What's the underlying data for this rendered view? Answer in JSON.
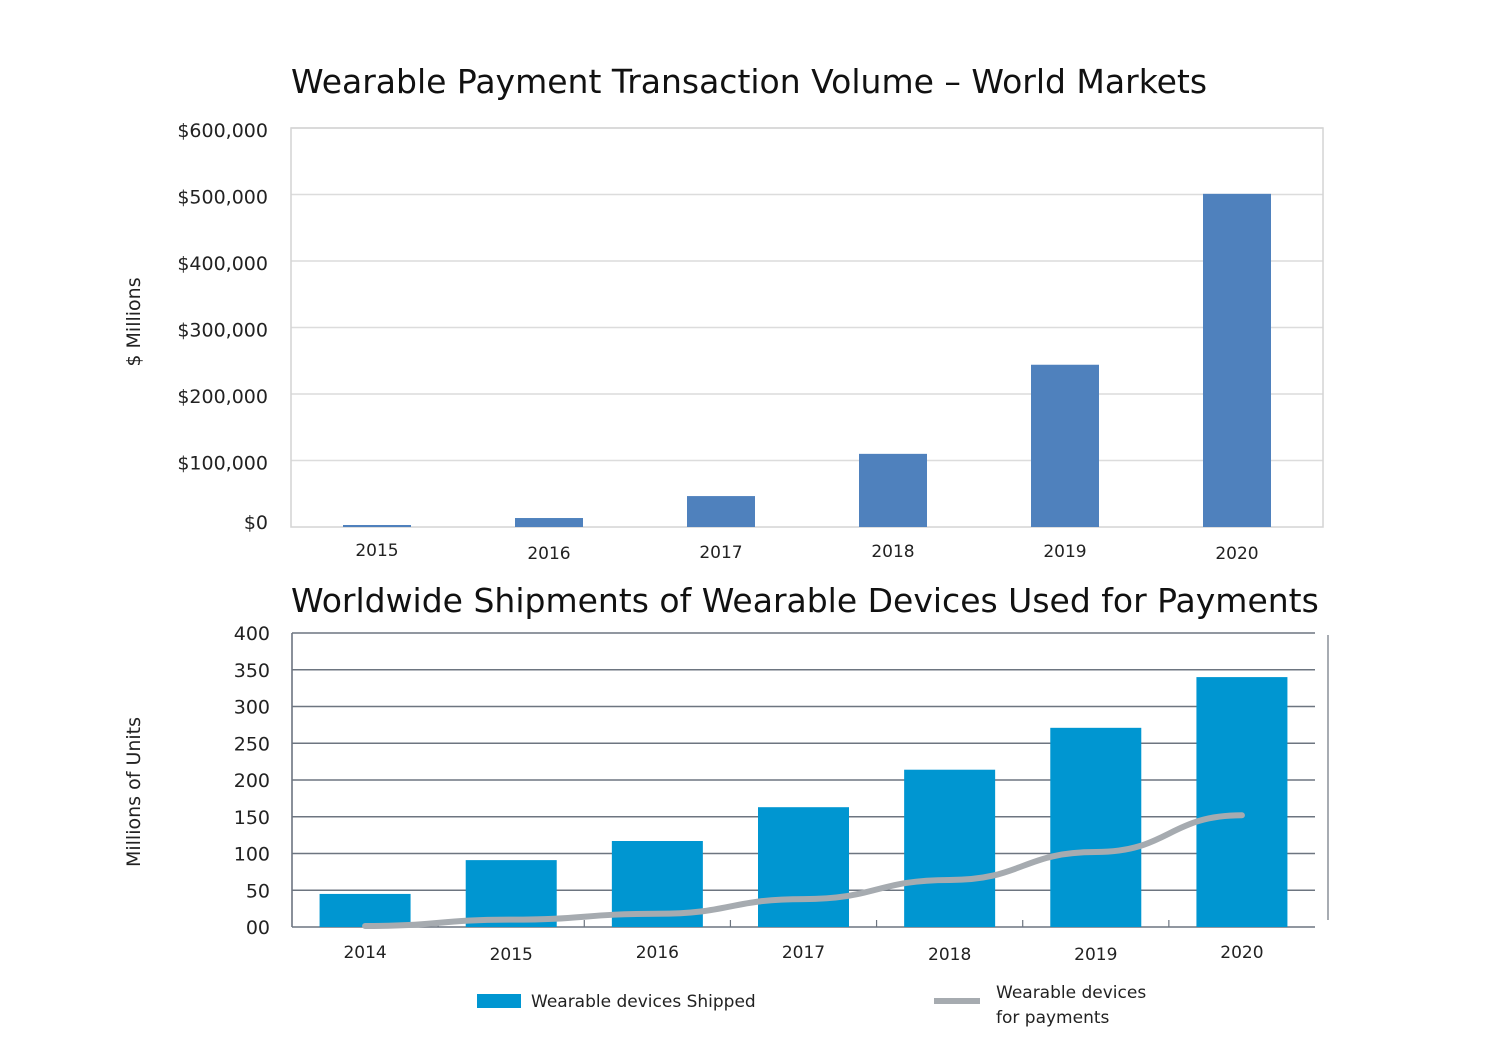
{
  "chart_data": [
    {
      "type": "bar",
      "title": "Wearable Payment Transaction Volume – World Markets",
      "xlabel": "",
      "ylabel": "$ Millions",
      "categories": [
        "2015",
        "2016",
        "2017",
        "2018",
        "2019",
        "2020"
      ],
      "values": [
        3000,
        13500,
        46500,
        110000,
        244000,
        501000
      ],
      "ylim": [
        0,
        600000
      ],
      "yticks": [
        0,
        100000,
        200000,
        300000,
        400000,
        500000,
        600000
      ],
      "ytick_labels": [
        "$0",
        "$100,000",
        "$200,000",
        "$300,000",
        "$400,000",
        "$500,000",
        "$600,000"
      ],
      "grid": true,
      "color": "#4f81bd"
    },
    {
      "type": "bar",
      "title": "Worldwide Shipments of Wearable Devices Used for Payments",
      "xlabel": "",
      "ylabel": "Millions of Units",
      "categories": [
        "2014",
        "2015",
        "2016",
        "2017",
        "2018",
        "2019",
        "2020"
      ],
      "series": [
        {
          "name": "Wearable devices Shipped",
          "type": "bar",
          "color": "#0096d1",
          "values": [
            45,
            91,
            117,
            163,
            214,
            271,
            340
          ]
        },
        {
          "name_lines": [
            "Wearable devices",
            "for payments"
          ],
          "name": "Wearable devices for payments",
          "type": "line",
          "color": "#a6abb0",
          "values": [
            0,
            10,
            18,
            38,
            64,
            102,
            152
          ]
        }
      ],
      "ylim": [
        0,
        400
      ],
      "yticks": [
        0,
        50,
        100,
        150,
        200,
        250,
        300,
        350,
        400
      ],
      "ytick_labels": [
        "00",
        "50",
        "100",
        "150",
        "200",
        "250",
        "300",
        "350",
        "400"
      ],
      "grid": true,
      "legend": "bottom"
    }
  ]
}
